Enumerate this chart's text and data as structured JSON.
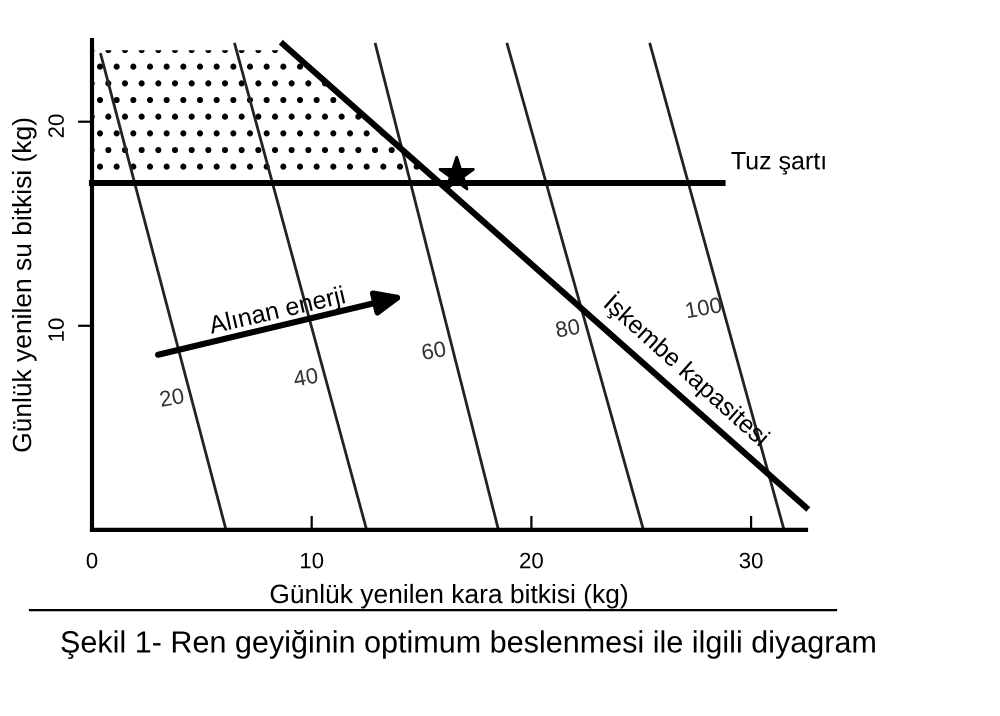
{
  "chart_data": {
    "type": "line",
    "title": "Şekil 1- Ren geyiğinin optimum beslenmesi ile ilgili diyagram",
    "xlabel": "Günlük yenilen kara bitkisi (kg)",
    "ylabel": "Günlük yenilen su bitkisi (kg)",
    "xlim": [
      0,
      32.5
    ],
    "ylim": [
      0,
      24
    ],
    "xticks": [
      0,
      10,
      20,
      30
    ],
    "yticks": [
      10,
      20
    ],
    "grid": false,
    "series": [
      {
        "type": "area",
        "color": "#000000",
        "x": [
          0,
          9.0,
          15.8
        ],
        "values": [
          23.5,
          23.5,
          17
        ]
      },
      {
        "color": "#222222",
        "x": [
          0.4,
          6.1
        ],
        "values": [
          23.3,
          0
        ]
      },
      {
        "color": "#222222",
        "x": [
          6.5,
          12.5
        ],
        "values": [
          23.8,
          0
        ]
      },
      {
        "color": "#222222",
        "x": [
          12.9,
          18.5
        ],
        "values": [
          23.8,
          0
        ]
      },
      {
        "color": "#222222",
        "x": [
          18.9,
          25.1
        ],
        "values": [
          23.8,
          0
        ]
      },
      {
        "color": "#222222",
        "x": [
          25.4,
          31.5
        ],
        "values": [
          23.8,
          0
        ]
      },
      {
        "color": "#000000",
        "x": [
          0,
          28.7
        ],
        "values": [
          17,
          17
        ]
      },
      {
        "color": "#000000",
        "x": [
          8.7,
          32.5
        ],
        "values": [
          23.8,
          1.1
        ]
      },
      {
        "type": "scatter",
        "color": "#000000",
        "marker": "star",
        "x": [
          16.6
        ],
        "values": [
          17.4
        ]
      }
    ],
    "annotations": [
      {
        "text": "20",
        "x": 4.53,
        "y": 6.4
      },
      {
        "text": "40",
        "x": 10.63,
        "y": 7.4
      },
      {
        "text": "60",
        "x": 16.45,
        "y": 8.7
      },
      {
        "text": "80",
        "x": 22.55,
        "y": 9.8
      },
      {
        "text": "100",
        "x": 28.73,
        "y": 10.8
      },
      {
        "text": "Tuz şartı",
        "x": 28.7,
        "y": 17
      },
      {
        "text": "İşkembe kapasitesi",
        "x": 26.3,
        "y": 7.0
      },
      "Alınan enerji"
    ]
  }
}
